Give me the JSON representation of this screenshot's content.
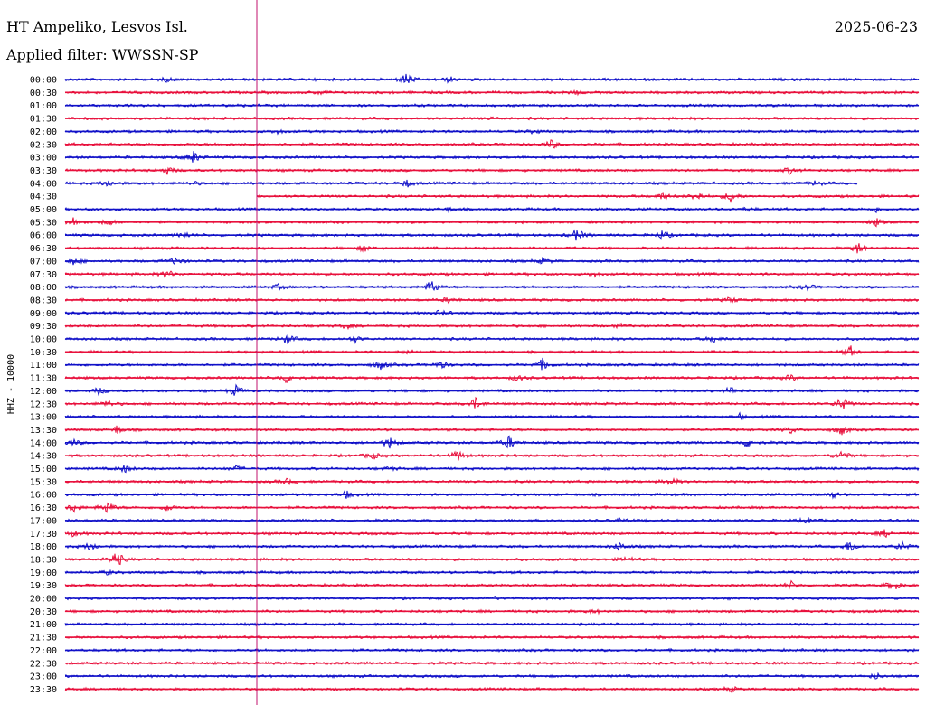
{
  "header": {
    "station": "HT Ampeliko, Lesvos Isl.",
    "date": "2025-06-23",
    "filter": "Applied filter: WWSSN-SP"
  },
  "chart_data": {
    "type": "line",
    "title": "HT Ampeliko, Lesvos Isl.",
    "ylabel": "HHZ - 10000",
    "colors": [
      "#1010c8",
      "#e8103c"
    ],
    "marker_color": "#c0106c",
    "grid": false,
    "categories": [
      "00:00",
      "00:30",
      "01:00",
      "01:30",
      "02:00",
      "02:30",
      "03:00",
      "03:30",
      "04:00",
      "04:30",
      "05:00",
      "05:30",
      "06:00",
      "06:30",
      "07:00",
      "07:30",
      "08:00",
      "08:30",
      "09:00",
      "09:30",
      "10:00",
      "10:30",
      "11:00",
      "11:30",
      "12:00",
      "12:30",
      "13:00",
      "13:30",
      "14:00",
      "14:30",
      "15:00",
      "15:30",
      "16:00",
      "16:30",
      "17:00",
      "17:30",
      "18:00",
      "18:30",
      "19:00",
      "19:30",
      "20:00",
      "20:30",
      "21:00",
      "21:30",
      "22:00",
      "22:30",
      "23:00",
      "23:30"
    ],
    "series": [
      {
        "label": "00:00",
        "events": [
          [
            0.4,
            7
          ],
          [
            0.45,
            3
          ],
          [
            0.12,
            2
          ]
        ]
      },
      {
        "label": "00:30",
        "events": [
          [
            0.6,
            2
          ],
          [
            0.3,
            2
          ]
        ]
      },
      {
        "label": "01:00",
        "events": [
          [
            0.2,
            1
          ]
        ]
      },
      {
        "label": "01:30",
        "events": [
          [
            0.5,
            1
          ]
        ]
      },
      {
        "label": "02:00",
        "events": [
          [
            0.25,
            2
          ],
          [
            0.55,
            2
          ]
        ]
      },
      {
        "label": "02:30",
        "events": [
          [
            0.57,
            5
          ]
        ]
      },
      {
        "label": "03:00",
        "events": [
          [
            0.15,
            7
          ]
        ]
      },
      {
        "label": "03:30",
        "events": [
          [
            0.12,
            4
          ],
          [
            0.85,
            4
          ]
        ]
      },
      {
        "label": "04:00",
        "events": [
          [
            0.05,
            4
          ],
          [
            0.15,
            2
          ],
          [
            0.4,
            4
          ],
          [
            0.88,
            3
          ]
        ]
      },
      {
        "label": "04:30",
        "events": [
          [
            0.7,
            4
          ],
          [
            0.74,
            5
          ],
          [
            0.78,
            6
          ]
        ]
      },
      {
        "label": "05:00",
        "events": [
          [
            0.45,
            2
          ],
          [
            0.8,
            2
          ],
          [
            0.95,
            3
          ]
        ]
      },
      {
        "label": "05:30",
        "events": [
          [
            0.01,
            5
          ],
          [
            0.05,
            4
          ],
          [
            0.95,
            4
          ]
        ]
      },
      {
        "label": "06:00",
        "events": [
          [
            0.6,
            7
          ],
          [
            0.7,
            5
          ],
          [
            0.14,
            3
          ]
        ]
      },
      {
        "label": "06:30",
        "events": [
          [
            0.35,
            4
          ],
          [
            0.93,
            7
          ]
        ]
      },
      {
        "label": "07:00",
        "events": [
          [
            0.01,
            4
          ],
          [
            0.13,
            4
          ],
          [
            0.56,
            3
          ]
        ]
      },
      {
        "label": "07:30",
        "events": [
          [
            0.12,
            4
          ],
          [
            0.62,
            2
          ]
        ]
      },
      {
        "label": "08:00",
        "events": [
          [
            0.43,
            8
          ],
          [
            0.25,
            3
          ],
          [
            0.87,
            3
          ]
        ]
      },
      {
        "label": "08:30",
        "events": [
          [
            0.45,
            3
          ],
          [
            0.78,
            3
          ]
        ]
      },
      {
        "label": "09:00",
        "events": [
          [
            0.44,
            3
          ]
        ]
      },
      {
        "label": "09:30",
        "events": [
          [
            0.33,
            3
          ],
          [
            0.65,
            2
          ]
        ]
      },
      {
        "label": "10:00",
        "events": [
          [
            0.26,
            5
          ],
          [
            0.34,
            3
          ],
          [
            0.76,
            4
          ]
        ]
      },
      {
        "label": "10:30",
        "events": [
          [
            0.92,
            6
          ],
          [
            0.4,
            2
          ]
        ]
      },
      {
        "label": "11:00",
        "events": [
          [
            0.37,
            5
          ],
          [
            0.44,
            4
          ],
          [
            0.56,
            7
          ]
        ]
      },
      {
        "label": "11:30",
        "events": [
          [
            0.26,
            6
          ],
          [
            0.53,
            3
          ],
          [
            0.85,
            3
          ]
        ]
      },
      {
        "label": "12:00",
        "events": [
          [
            0.04,
            4
          ],
          [
            0.2,
            6
          ],
          [
            0.78,
            4
          ]
        ]
      },
      {
        "label": "12:30",
        "events": [
          [
            0.05,
            4
          ],
          [
            0.48,
            7
          ],
          [
            0.91,
            8
          ]
        ]
      },
      {
        "label": "13:00",
        "events": [
          [
            0.79,
            3
          ]
        ]
      },
      {
        "label": "13:30",
        "events": [
          [
            0.06,
            5
          ],
          [
            0.85,
            4
          ],
          [
            0.91,
            6
          ]
        ]
      },
      {
        "label": "14:00",
        "events": [
          [
            0.01,
            3
          ],
          [
            0.38,
            6
          ],
          [
            0.52,
            7
          ],
          [
            0.8,
            5
          ]
        ]
      },
      {
        "label": "14:30",
        "events": [
          [
            0.36,
            4
          ],
          [
            0.46,
            6
          ],
          [
            0.91,
            6
          ]
        ]
      },
      {
        "label": "15:00",
        "events": [
          [
            0.07,
            4
          ],
          [
            0.2,
            3
          ],
          [
            0.38,
            2
          ]
        ]
      },
      {
        "label": "15:30",
        "events": [
          [
            0.26,
            3
          ],
          [
            0.71,
            4
          ]
        ]
      },
      {
        "label": "16:00",
        "events": [
          [
            0.33,
            4
          ],
          [
            0.9,
            3
          ]
        ]
      },
      {
        "label": "16:30",
        "events": [
          [
            0.01,
            5
          ],
          [
            0.05,
            7
          ],
          [
            0.12,
            4
          ]
        ]
      },
      {
        "label": "17:00",
        "events": [
          [
            0.65,
            2
          ],
          [
            0.87,
            3
          ]
        ]
      },
      {
        "label": "17:30",
        "events": [
          [
            0.01,
            3
          ],
          [
            0.96,
            4
          ]
        ]
      },
      {
        "label": "18:00",
        "events": [
          [
            0.03,
            5
          ],
          [
            0.65,
            5
          ],
          [
            0.92,
            7
          ],
          [
            0.98,
            5
          ]
        ]
      },
      {
        "label": "18:30",
        "events": [
          [
            0.06,
            10
          ],
          [
            0.66,
            3
          ]
        ]
      },
      {
        "label": "19:00",
        "events": [
          [
            0.05,
            2
          ]
        ]
      },
      {
        "label": "19:30",
        "events": [
          [
            0.85,
            4
          ],
          [
            0.97,
            7
          ]
        ]
      },
      {
        "label": "20:00",
        "events": [
          [
            0.5,
            2
          ]
        ]
      },
      {
        "label": "20:30",
        "events": [
          [
            0.62,
            2
          ]
        ]
      },
      {
        "label": "21:00",
        "events": []
      },
      {
        "label": "21:30",
        "events": []
      },
      {
        "label": "22:00",
        "events": []
      },
      {
        "label": "22:30",
        "events": []
      },
      {
        "label": "23:00",
        "events": [
          [
            0.95,
            3
          ]
        ]
      },
      {
        "label": "23:30",
        "events": [
          [
            0.78,
            3
          ]
        ]
      }
    ]
  }
}
